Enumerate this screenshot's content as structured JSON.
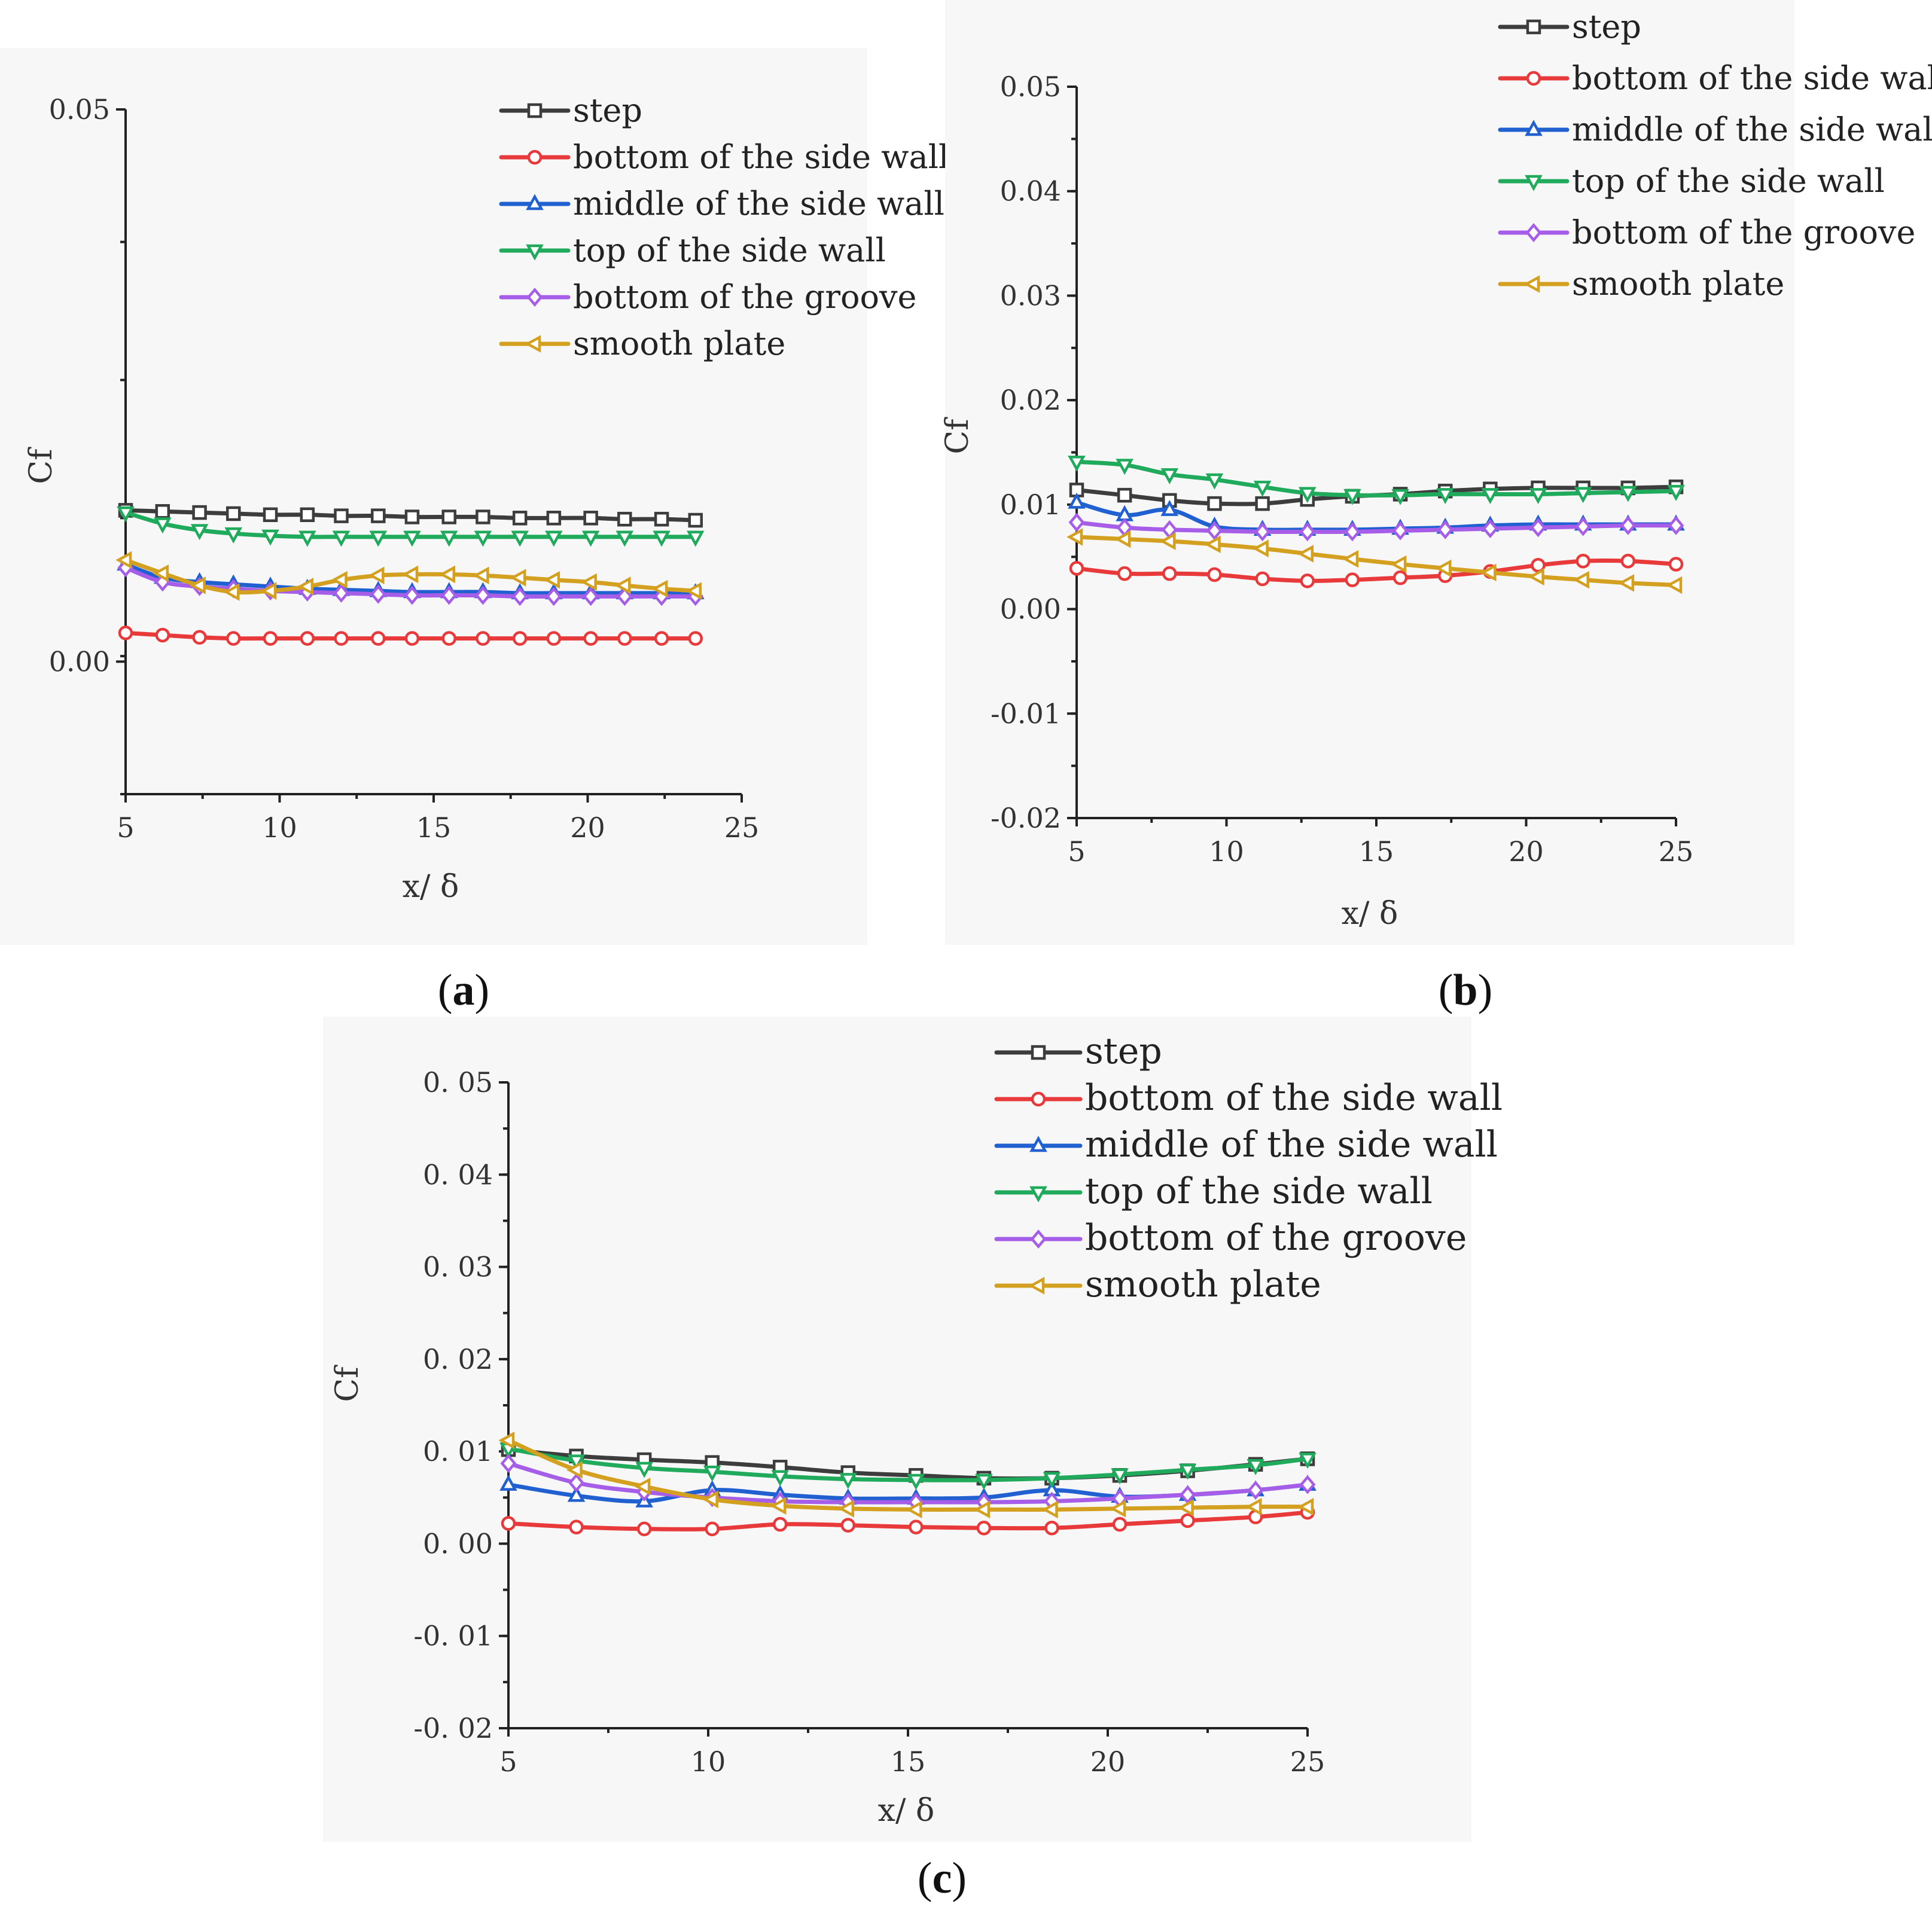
{
  "chart_data": [
    {
      "type": "line",
      "panel": "a",
      "xlabel": "x/ δ",
      "ylabel": "Cf",
      "xlim": [
        5,
        25
      ],
      "ylim": [
        -0.012,
        0.05
      ],
      "xticks": [
        "5",
        "10",
        "15",
        "20",
        "25"
      ],
      "yticks": [
        "0.05",
        "0.00"
      ],
      "xtick_values": [
        5,
        10,
        15,
        20,
        25
      ],
      "ytick_values": [
        0.05,
        0.0
      ],
      "legend_position": "top-right",
      "series": [
        {
          "name": "step",
          "color": "#3d3d3d",
          "marker": "square",
          "x": [
            5,
            6.2,
            7.4,
            8.5,
            9.7,
            10.9,
            12.0,
            13.2,
            14.3,
            15.5,
            16.6,
            17.8,
            18.9,
            20.1,
            21.2,
            22.4,
            23.5
          ],
          "y": [
            0.0137,
            0.0136,
            0.0135,
            0.0134,
            0.0133,
            0.0133,
            0.0132,
            0.0132,
            0.0131,
            0.0131,
            0.0131,
            0.013,
            0.013,
            0.013,
            0.0129,
            0.0129,
            0.0128
          ]
        },
        {
          "name": "bottom of the side wall",
          "color": "#e8393b",
          "marker": "circle",
          "x": [
            5,
            6.2,
            7.4,
            8.5,
            9.7,
            10.9,
            12.0,
            13.2,
            14.3,
            15.5,
            16.6,
            17.8,
            18.9,
            20.1,
            21.2,
            22.4,
            23.5
          ],
          "y": [
            0.0026,
            0.0024,
            0.0022,
            0.0021,
            0.0021,
            0.0021,
            0.0021,
            0.0021,
            0.0021,
            0.0021,
            0.0021,
            0.0021,
            0.0021,
            0.0021,
            0.0021,
            0.0021,
            0.0021
          ]
        },
        {
          "name": "middle of the side wall",
          "color": "#2060d0",
          "marker": "triangle-up",
          "x": [
            5,
            6.2,
            7.4,
            8.5,
            9.7,
            10.9,
            12.0,
            13.2,
            14.3,
            15.5,
            16.6,
            17.8,
            18.9,
            20.1,
            21.2,
            22.4,
            23.5
          ],
          "y": [
            0.0088,
            0.0076,
            0.0072,
            0.007,
            0.0068,
            0.0066,
            0.0065,
            0.0064,
            0.0063,
            0.0063,
            0.0063,
            0.0062,
            0.0062,
            0.0062,
            0.0062,
            0.0062,
            0.0062
          ]
        },
        {
          "name": "top of the side wall",
          "color": "#1faa5c",
          "marker": "triangle-down",
          "x": [
            5,
            6.2,
            7.4,
            8.5,
            9.7,
            10.9,
            12.0,
            13.2,
            14.3,
            15.5,
            16.6,
            17.8,
            18.9,
            20.1,
            21.2,
            22.4,
            23.5
          ],
          "y": [
            0.0135,
            0.0125,
            0.0119,
            0.0116,
            0.0114,
            0.0113,
            0.0113,
            0.0113,
            0.0113,
            0.0113,
            0.0113,
            0.0113,
            0.0113,
            0.0113,
            0.0113,
            0.0113,
            0.0113
          ]
        },
        {
          "name": "bottom of the groove",
          "color": "#a65ee8",
          "marker": "diamond",
          "x": [
            5,
            6.2,
            7.4,
            8.5,
            9.7,
            10.9,
            12.0,
            13.2,
            14.3,
            15.5,
            16.6,
            17.8,
            18.9,
            20.1,
            21.2,
            22.4,
            23.5
          ],
          "y": [
            0.0085,
            0.0072,
            0.0068,
            0.0066,
            0.0064,
            0.0063,
            0.0062,
            0.0061,
            0.006,
            0.006,
            0.006,
            0.0059,
            0.0059,
            0.0059,
            0.0059,
            0.0059,
            0.0059
          ]
        },
        {
          "name": "smooth plate",
          "color": "#d4a020",
          "marker": "triangle-left",
          "x": [
            5,
            6.2,
            7.4,
            8.5,
            9.7,
            10.9,
            12.0,
            13.2,
            14.3,
            15.5,
            16.6,
            17.8,
            18.9,
            20.1,
            21.2,
            22.4,
            23.5
          ],
          "y": [
            0.0092,
            0.008,
            0.0069,
            0.0063,
            0.0064,
            0.0068,
            0.0074,
            0.0078,
            0.0079,
            0.0079,
            0.0078,
            0.0076,
            0.0074,
            0.0072,
            0.0069,
            0.0066,
            0.0064
          ]
        }
      ]
    },
    {
      "type": "line",
      "panel": "b",
      "xlabel": "x/ δ",
      "ylabel": "Cf",
      "xlim": [
        5,
        25
      ],
      "ylim": [
        -0.02,
        0.05
      ],
      "xticks": [
        "5",
        "10",
        "15",
        "20",
        "25"
      ],
      "yticks": [
        "0.05",
        "0.04",
        "0.03",
        "0.02",
        "0.01",
        "0.00",
        "-0.01",
        "-0.02"
      ],
      "xtick_values": [
        5,
        10,
        15,
        20,
        25
      ],
      "ytick_values": [
        0.05,
        0.04,
        0.03,
        0.02,
        0.01,
        0.0,
        -0.01,
        -0.02
      ],
      "legend_position": "top-right",
      "series": [
        {
          "name": "step",
          "color": "#3d3d3d",
          "marker": "square",
          "x": [
            5,
            6.6,
            8.1,
            9.6,
            11.2,
            12.7,
            14.2,
            15.8,
            17.3,
            18.8,
            20.4,
            21.9,
            23.4,
            25
          ],
          "y": [
            0.0114,
            0.0109,
            0.0104,
            0.0101,
            0.0101,
            0.0105,
            0.0108,
            0.011,
            0.0113,
            0.0115,
            0.0116,
            0.0116,
            0.0116,
            0.0117
          ]
        },
        {
          "name": "bottom of the side wall",
          "color": "#e8393b",
          "marker": "circle",
          "x": [
            5,
            6.6,
            8.1,
            9.6,
            11.2,
            12.7,
            14.2,
            15.8,
            17.3,
            18.8,
            20.4,
            21.9,
            23.4,
            25
          ],
          "y": [
            0.0039,
            0.0034,
            0.0034,
            0.0033,
            0.0029,
            0.0027,
            0.0028,
            0.003,
            0.0032,
            0.0036,
            0.0042,
            0.0046,
            0.0046,
            0.0043
          ]
        },
        {
          "name": "middle of the side wall",
          "color": "#2060d0",
          "marker": "triangle-up",
          "x": [
            5,
            6.6,
            8.1,
            9.6,
            11.2,
            12.7,
            14.2,
            15.8,
            17.3,
            18.8,
            20.4,
            21.9,
            23.4,
            25
          ],
          "y": [
            0.0102,
            0.009,
            0.0095,
            0.0079,
            0.0076,
            0.0076,
            0.0076,
            0.0077,
            0.0078,
            0.008,
            0.0081,
            0.0081,
            0.0081,
            0.0081
          ]
        },
        {
          "name": "top of the side wall",
          "color": "#1faa5c",
          "marker": "triangle-down",
          "x": [
            5,
            6.6,
            8.1,
            9.6,
            11.2,
            12.7,
            14.2,
            15.8,
            17.3,
            18.8,
            20.4,
            21.9,
            23.4,
            25
          ],
          "y": [
            0.0141,
            0.0138,
            0.0129,
            0.0124,
            0.0117,
            0.0111,
            0.0109,
            0.0109,
            0.011,
            0.011,
            0.011,
            0.0111,
            0.0112,
            0.0113
          ]
        },
        {
          "name": "bottom of the groove",
          "color": "#a65ee8",
          "marker": "diamond",
          "x": [
            5,
            6.6,
            8.1,
            9.6,
            11.2,
            12.7,
            14.2,
            15.8,
            17.3,
            18.8,
            20.4,
            21.9,
            23.4,
            25
          ],
          "y": [
            0.0083,
            0.0078,
            0.0076,
            0.0075,
            0.0074,
            0.0074,
            0.0074,
            0.0075,
            0.0076,
            0.0077,
            0.0078,
            0.0079,
            0.008,
            0.008
          ]
        },
        {
          "name": "smooth plate",
          "color": "#d4a020",
          "marker": "triangle-left",
          "x": [
            5,
            6.6,
            8.1,
            9.6,
            11.2,
            12.7,
            14.2,
            15.8,
            17.3,
            18.8,
            20.4,
            21.9,
            23.4,
            25
          ],
          "y": [
            0.0069,
            0.0067,
            0.0065,
            0.0062,
            0.0058,
            0.0053,
            0.0048,
            0.0043,
            0.0039,
            0.0035,
            0.0031,
            0.0028,
            0.0025,
            0.0023
          ]
        }
      ]
    },
    {
      "type": "line",
      "panel": "c",
      "xlabel": "x/ δ",
      "ylabel": "Cf",
      "xlim": [
        5,
        25
      ],
      "ylim": [
        -0.02,
        0.05
      ],
      "xticks": [
        "5",
        "10",
        "15",
        "20",
        "25"
      ],
      "yticks": [
        "0. 05",
        "0. 04",
        "0. 03",
        "0. 02",
        "0. 01",
        "0. 00",
        "-0. 01",
        "-0. 02"
      ],
      "xtick_values": [
        5,
        10,
        15,
        20,
        25
      ],
      "ytick_values": [
        0.05,
        0.04,
        0.03,
        0.02,
        0.01,
        0.0,
        -0.01,
        -0.02
      ],
      "legend_position": "top-right",
      "series": [
        {
          "name": "step",
          "color": "#3d3d3d",
          "marker": "square",
          "x": [
            5,
            6.7,
            8.4,
            10.1,
            11.8,
            13.5,
            15.2,
            16.9,
            18.6,
            20.3,
            22.0,
            23.7,
            25
          ],
          "y": [
            0.0102,
            0.0095,
            0.0091,
            0.0088,
            0.0083,
            0.0077,
            0.0074,
            0.0071,
            0.0071,
            0.0074,
            0.0079,
            0.0086,
            0.0092
          ]
        },
        {
          "name": "bottom of the side wall",
          "color": "#e8393b",
          "marker": "circle",
          "x": [
            5,
            6.7,
            8.4,
            10.1,
            11.8,
            13.5,
            15.2,
            16.9,
            18.6,
            20.3,
            22.0,
            23.7,
            25
          ],
          "y": [
            0.0022,
            0.0018,
            0.0016,
            0.0016,
            0.0021,
            0.002,
            0.0018,
            0.0017,
            0.0017,
            0.0021,
            0.0025,
            0.0029,
            0.0034
          ]
        },
        {
          "name": "middle of the side wall",
          "color": "#2060d0",
          "marker": "triangle-up",
          "x": [
            5,
            6.7,
            8.4,
            10.1,
            11.8,
            13.5,
            15.2,
            16.9,
            18.6,
            20.3,
            22.0,
            23.7,
            25
          ],
          "y": [
            0.0064,
            0.0052,
            0.0046,
            0.0058,
            0.0053,
            0.0049,
            0.0049,
            0.005,
            0.0058,
            0.0051,
            0.0053,
            0.0058,
            0.0064
          ]
        },
        {
          "name": "top of the side wall",
          "color": "#1faa5c",
          "marker": "triangle-down",
          "x": [
            5,
            6.7,
            8.4,
            10.1,
            11.8,
            13.5,
            15.2,
            16.9,
            18.6,
            20.3,
            22.0,
            23.7,
            25
          ],
          "y": [
            0.0103,
            0.009,
            0.0082,
            0.0078,
            0.0073,
            0.007,
            0.0069,
            0.0069,
            0.0071,
            0.0075,
            0.008,
            0.0085,
            0.0092
          ]
        },
        {
          "name": "bottom of the groove",
          "color": "#a65ee8",
          "marker": "diamond",
          "x": [
            5,
            6.7,
            8.4,
            10.1,
            11.8,
            13.5,
            15.2,
            16.9,
            18.6,
            20.3,
            22.0,
            23.7,
            25
          ],
          "y": [
            0.0087,
            0.0066,
            0.0056,
            0.005,
            0.0046,
            0.0045,
            0.0045,
            0.0045,
            0.0046,
            0.0049,
            0.0053,
            0.0058,
            0.0064
          ]
        },
        {
          "name": "smooth plate",
          "color": "#d4a020",
          "marker": "triangle-left",
          "x": [
            5,
            6.7,
            8.4,
            10.1,
            11.8,
            13.5,
            15.2,
            16.9,
            18.6,
            20.3,
            22.0,
            23.7,
            25
          ],
          "y": [
            0.0112,
            0.008,
            0.0062,
            0.0048,
            0.0041,
            0.0038,
            0.0037,
            0.0037,
            0.0037,
            0.0038,
            0.0039,
            0.004,
            0.004
          ]
        }
      ]
    }
  ],
  "panel_labels": [
    {
      "open": "(",
      "letter": "a",
      "close": ")"
    },
    {
      "open": "(",
      "letter": "b",
      "close": ")"
    },
    {
      "open": "(",
      "letter": "c",
      "close": ")"
    }
  ]
}
